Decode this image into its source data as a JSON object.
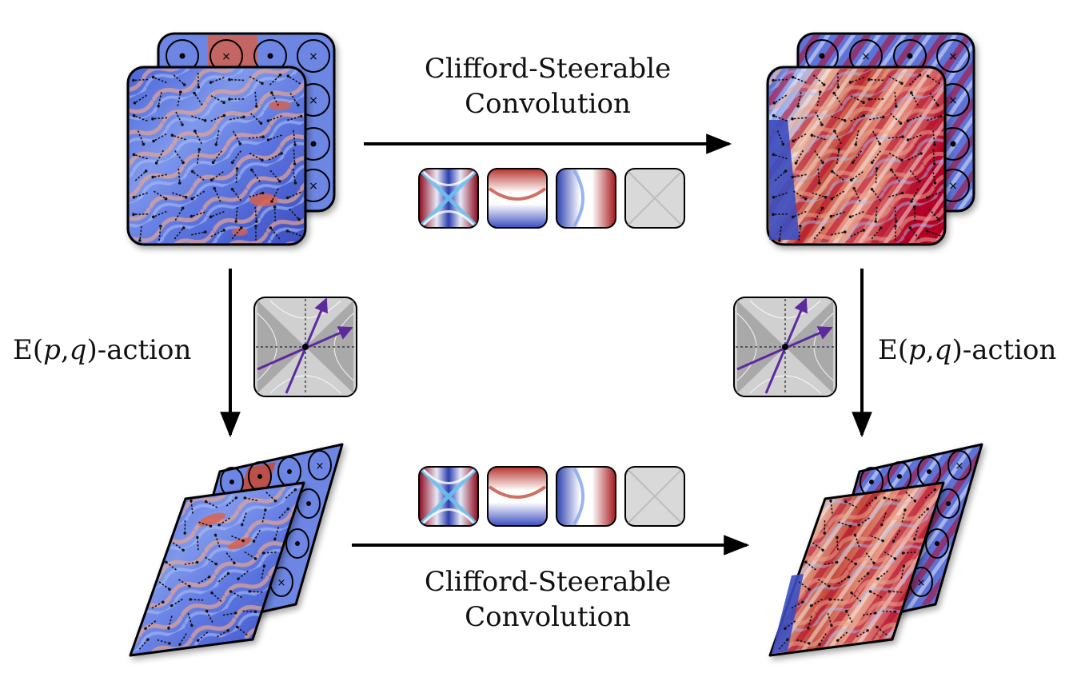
{
  "top_conv": {
    "line1": "Clifford-Steerable",
    "line2": "Convolution"
  },
  "bottom_conv": {
    "line1": "Clifford-Steerable",
    "line2": "Convolution"
  },
  "left_action": {
    "prefix": "E(",
    "p": "p",
    "comma": ",",
    "q": "q",
    "suffix": ")-action"
  },
  "right_action": {
    "prefix": "E(",
    "p": "p",
    "comma": ",",
    "q": "q",
    "suffix": ")-action"
  },
  "colors": {
    "blue": "#3b4cc0",
    "red": "#b40426",
    "arrow": "#5b2a9e",
    "kernel_gray": "#d9d9d9",
    "grid_gray": "#bdbdbd"
  },
  "kernels": [
    "hyperbolic-red-blue",
    "red-white-blue-horizontal",
    "blue-white-red-vertical",
    "empty-gray"
  ],
  "channel_symbols": [
    "dot",
    "cross",
    "dot",
    "cross"
  ]
}
